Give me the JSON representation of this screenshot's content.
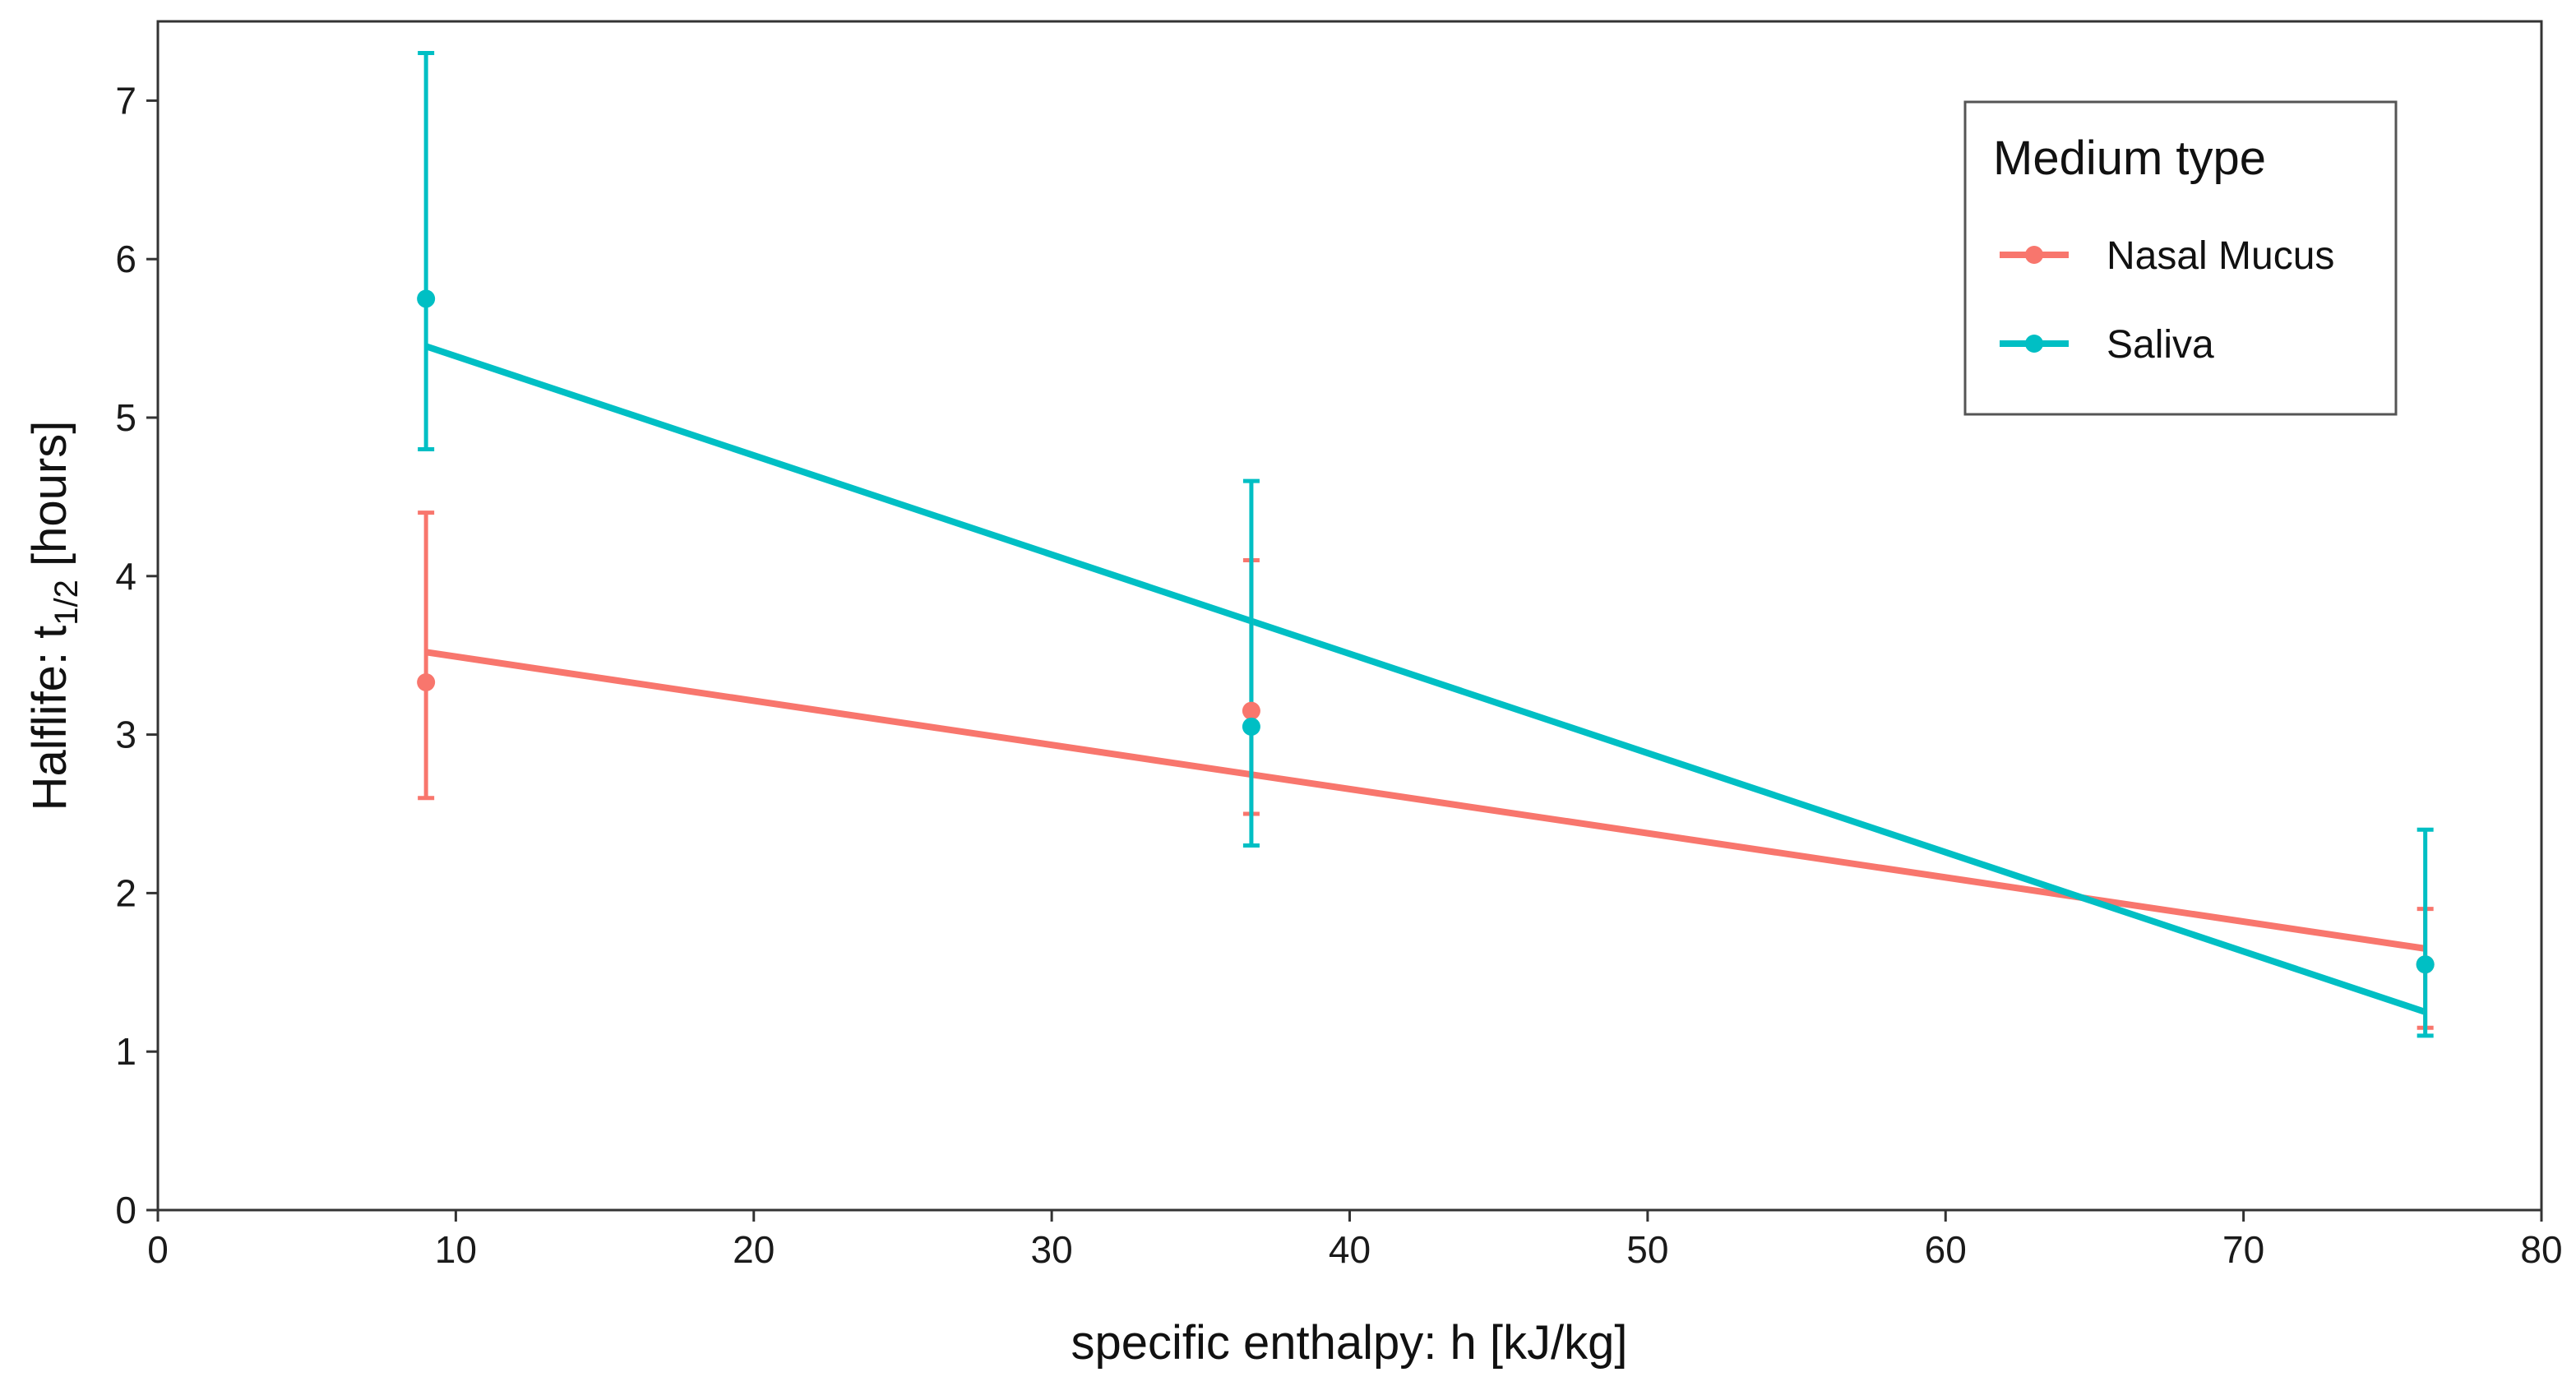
{
  "chart_data": {
    "type": "line",
    "title": "",
    "xlabel": "specific enthalpy: h [kJ/kg]",
    "ylabel_prefix": "Halflife:  t",
    "ylabel_subscript": "1/2",
    "ylabel_suffix": " [hours]",
    "xlim": [
      0,
      80
    ],
    "ylim": [
      0,
      7.5
    ],
    "xticks": [
      "0",
      "10",
      "20",
      "30",
      "40",
      "50",
      "60",
      "70",
      "80"
    ],
    "yticks": [
      "0",
      "1",
      "2",
      "3",
      "4",
      "5",
      "6",
      "7"
    ],
    "grid": false,
    "legend": {
      "title": "Medium type",
      "position": "top-right"
    },
    "series": [
      {
        "name": "Nasal Mucus",
        "color": "#F8766D",
        "points": [
          {
            "x": 9.0,
            "y": 3.33,
            "err_low": 2.6,
            "err_high": 4.4
          },
          {
            "x": 36.7,
            "y": 3.15,
            "err_low": 2.5,
            "err_high": 4.1
          },
          {
            "x": 76.1,
            "y": 1.55,
            "err_low": 1.15,
            "err_high": 1.9
          }
        ],
        "fit": {
          "x": [
            9.0,
            76.1
          ],
          "y": [
            3.52,
            1.65
          ]
        }
      },
      {
        "name": "Saliva",
        "color": "#00BFC4",
        "points": [
          {
            "x": 9.0,
            "y": 5.75,
            "err_low": 4.8,
            "err_high": 7.3
          },
          {
            "x": 36.7,
            "y": 3.05,
            "err_low": 2.3,
            "err_high": 4.6
          },
          {
            "x": 76.1,
            "y": 1.55,
            "err_low": 1.1,
            "err_high": 2.4
          }
        ],
        "fit": {
          "x": [
            9.0,
            76.1
          ],
          "y": [
            5.45,
            1.25
          ]
        }
      }
    ]
  }
}
